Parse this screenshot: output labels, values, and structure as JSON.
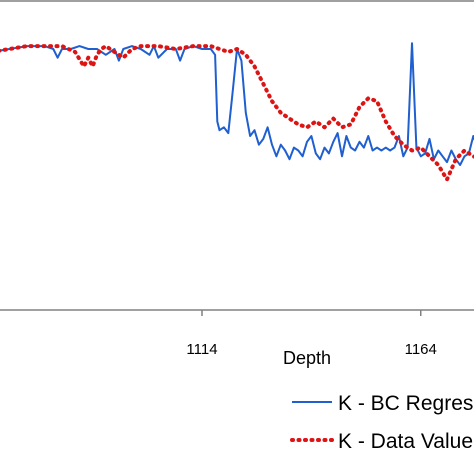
{
  "chart_data": {
    "type": "line",
    "xlabel": "Depth",
    "x_ticks": [
      1114,
      1164
    ],
    "xlim": [
      1066,
      1178
    ],
    "ylim": [
      0,
      1
    ],
    "series": [
      {
        "name": "K - BC Regression",
        "color": "#1f5fcf",
        "style": "solid",
        "x": [
          1066,
          1070,
          1074,
          1078,
          1080,
          1081,
          1082,
          1084,
          1086,
          1088,
          1090,
          1092,
          1094,
          1095,
          1096,
          1098,
          1100,
          1102,
          1103,
          1104,
          1106,
          1108,
          1109,
          1110,
          1112,
          1114,
          1116,
          1117,
          1117.5,
          1118,
          1119,
          1120,
          1121,
          1122,
          1123,
          1124,
          1125,
          1126,
          1127,
          1128,
          1129,
          1130,
          1131,
          1132,
          1133,
          1134,
          1135,
          1136,
          1137,
          1138,
          1139,
          1140,
          1141,
          1142,
          1143,
          1144,
          1145,
          1146,
          1147,
          1148,
          1149,
          1150,
          1151,
          1152,
          1153,
          1154,
          1155,
          1156,
          1157,
          1158,
          1159,
          1160,
          1161,
          1162,
          1163,
          1164,
          1165,
          1166,
          1167,
          1168,
          1169,
          1170,
          1171,
          1172,
          1173,
          1174,
          1175,
          1176,
          1177,
          1178
        ],
        "y": [
          0.89,
          0.9,
          0.91,
          0.91,
          0.9,
          0.87,
          0.9,
          0.9,
          0.91,
          0.9,
          0.9,
          0.88,
          0.9,
          0.86,
          0.9,
          0.91,
          0.9,
          0.88,
          0.91,
          0.87,
          0.9,
          0.9,
          0.86,
          0.9,
          0.91,
          0.9,
          0.9,
          0.88,
          0.65,
          0.62,
          0.63,
          0.61,
          0.75,
          0.9,
          0.86,
          0.68,
          0.6,
          0.62,
          0.57,
          0.59,
          0.63,
          0.57,
          0.53,
          0.57,
          0.55,
          0.52,
          0.56,
          0.55,
          0.53,
          0.58,
          0.6,
          0.54,
          0.52,
          0.56,
          0.54,
          0.58,
          0.61,
          0.53,
          0.6,
          0.56,
          0.55,
          0.58,
          0.56,
          0.6,
          0.55,
          0.56,
          0.55,
          0.56,
          0.55,
          0.56,
          0.6,
          0.53,
          0.56,
          0.92,
          0.56,
          0.53,
          0.54,
          0.59,
          0.52,
          0.55,
          0.53,
          0.51,
          0.55,
          0.52,
          0.5,
          0.53,
          0.54,
          0.6,
          0.56,
          0.55
        ]
      },
      {
        "name": "K - Data Value",
        "color": "#dd1414",
        "style": "dotted",
        "x": [
          1066,
          1070,
          1074,
          1078,
          1082,
          1085,
          1087,
          1088,
          1089,
          1090,
          1091,
          1092,
          1094,
          1096,
          1098,
          1100,
          1104,
          1108,
          1112,
          1116,
          1118,
          1120,
          1122,
          1124,
          1126,
          1128,
          1130,
          1132,
          1134,
          1136,
          1138,
          1140,
          1142,
          1144,
          1146,
          1148,
          1150,
          1152,
          1154,
          1156,
          1158,
          1160,
          1162,
          1164,
          1166,
          1168,
          1170,
          1172,
          1174,
          1176,
          1178
        ],
        "y": [
          0.89,
          0.9,
          0.91,
          0.91,
          0.91,
          0.89,
          0.84,
          0.87,
          0.84,
          0.88,
          0.9,
          0.91,
          0.89,
          0.87,
          0.9,
          0.91,
          0.91,
          0.9,
          0.91,
          0.91,
          0.9,
          0.89,
          0.9,
          0.88,
          0.84,
          0.78,
          0.72,
          0.68,
          0.66,
          0.64,
          0.63,
          0.65,
          0.63,
          0.66,
          0.63,
          0.64,
          0.7,
          0.73,
          0.72,
          0.65,
          0.6,
          0.57,
          0.55,
          0.56,
          0.53,
          0.5,
          0.45,
          0.52,
          0.55,
          0.53,
          0.52
        ]
      }
    ],
    "legend_position": "bottom-right",
    "grid": false
  }
}
